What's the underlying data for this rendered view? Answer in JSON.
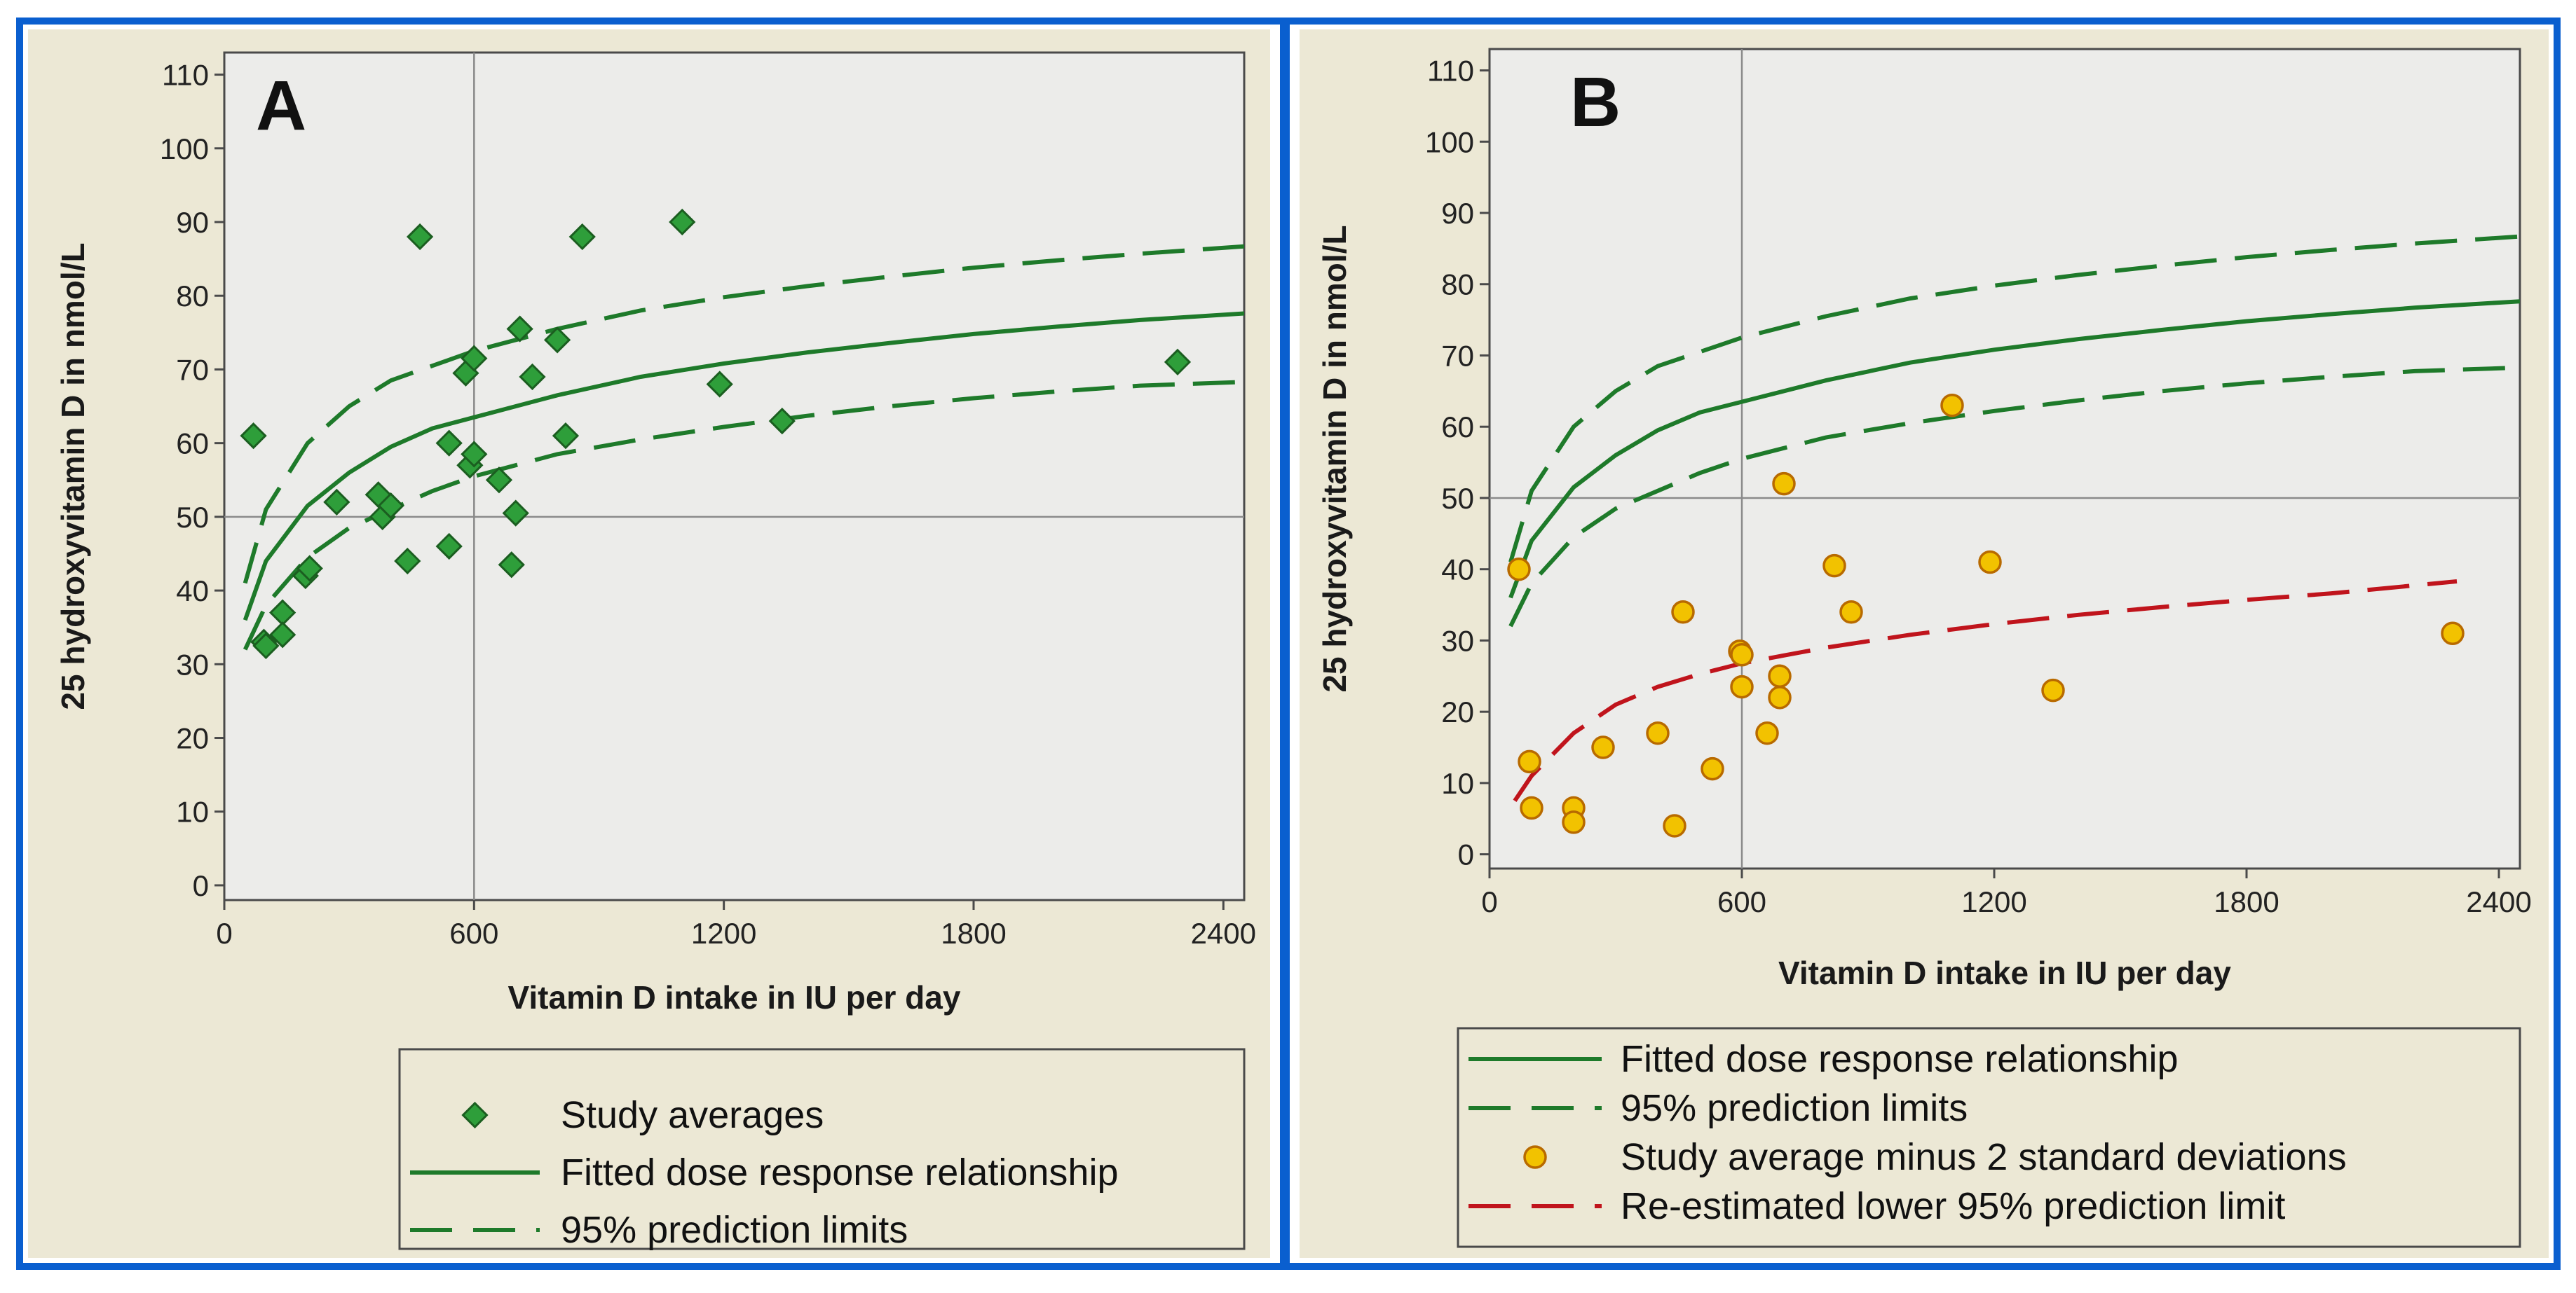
{
  "chart_data": [
    {
      "type": "scatter",
      "panel_label": "A",
      "xlabel": "Vitamin D intake in IU per day",
      "ylabel": "25 hydroxyvitamin D in nmol/L",
      "xlim": [
        0,
        2450
      ],
      "ylim": [
        -2,
        113
      ],
      "x_ticks": [
        0,
        600,
        1200,
        1800,
        2400
      ],
      "y_ticks": [
        0,
        10,
        20,
        30,
        40,
        50,
        60,
        70,
        80,
        90,
        100,
        110
      ],
      "reference_lines": {
        "x": 600,
        "y": 50
      },
      "series": [
        {
          "name": "Study averages",
          "kind": "points",
          "marker": "diamond",
          "color": "#2e9e3a",
          "points": [
            [
              70,
              61
            ],
            [
              95,
              33
            ],
            [
              100,
              32.5
            ],
            [
              140,
              37
            ],
            [
              140,
              34
            ],
            [
              195,
              42
            ],
            [
              205,
              43
            ],
            [
              270,
              52
            ],
            [
              370,
              53
            ],
            [
              380,
              50
            ],
            [
              400,
              51.5
            ],
            [
              440,
              44
            ],
            [
              470,
              88
            ],
            [
              540,
              60
            ],
            [
              540,
              46
            ],
            [
              580,
              69.5
            ],
            [
              590,
              57
            ],
            [
              600,
              71.5
            ],
            [
              600,
              58.5
            ],
            [
              660,
              55
            ],
            [
              690,
              43.5
            ],
            [
              700,
              50.5
            ],
            [
              710,
              75.5
            ],
            [
              740,
              69
            ],
            [
              800,
              74
            ],
            [
              820,
              61
            ],
            [
              860,
              88
            ],
            [
              1100,
              90
            ],
            [
              1190,
              68
            ],
            [
              1340,
              63
            ],
            [
              2290,
              71
            ]
          ]
        },
        {
          "name": "Fitted dose response relationship",
          "kind": "line",
          "style": "solid",
          "color": "#1e7a2a",
          "curve": "fitted"
        },
        {
          "name": "95% prediction limits",
          "kind": "line",
          "style": "dashed",
          "color": "#1e7a2a",
          "curve": "prediction"
        }
      ],
      "legend": {
        "position": "bottom",
        "entries": [
          "Study averages",
          "Fitted dose response relationship",
          "95% prediction limits"
        ]
      }
    },
    {
      "type": "scatter",
      "panel_label": "B",
      "xlabel": "Vitamin D intake in IU per day",
      "ylabel": "25 hydroxyvitamin D in nmol/L",
      "xlim": [
        0,
        2450
      ],
      "ylim": [
        -2,
        113
      ],
      "x_ticks": [
        0,
        600,
        1200,
        1800,
        2400
      ],
      "y_ticks": [
        0,
        10,
        20,
        30,
        40,
        50,
        60,
        70,
        80,
        90,
        100,
        110
      ],
      "reference_lines": {
        "x": 600,
        "y": 50
      },
      "series": [
        {
          "name": "Fitted dose response relationship",
          "kind": "line",
          "style": "solid",
          "color": "#1e7a2a",
          "curve": "fitted"
        },
        {
          "name": "95% prediction limits",
          "kind": "line",
          "style": "dashed",
          "color": "#1e7a2a",
          "curve": "prediction"
        },
        {
          "name": "Study average minus 2 standard deviations",
          "kind": "points",
          "marker": "circle",
          "color": "#f2c200",
          "points": [
            [
              70,
              40
            ],
            [
              95,
              13
            ],
            [
              100,
              6.5
            ],
            [
              200,
              6.5
            ],
            [
              200,
              4.5
            ],
            [
              270,
              15
            ],
            [
              400,
              17
            ],
            [
              440,
              4
            ],
            [
              460,
              34
            ],
            [
              530,
              12
            ],
            [
              595,
              28.5
            ],
            [
              600,
              28
            ],
            [
              600,
              23.5
            ],
            [
              660,
              17
            ],
            [
              690,
              25
            ],
            [
              690,
              22
            ],
            [
              700,
              52
            ],
            [
              820,
              40.5
            ],
            [
              860,
              34
            ],
            [
              1100,
              63
            ],
            [
              1190,
              41
            ],
            [
              1340,
              23
            ],
            [
              2290,
              31
            ]
          ]
        },
        {
          "name": "Re-estimated lower 95% prediction limit",
          "kind": "line",
          "style": "dashed",
          "color": "#c0141c",
          "curve": "reestimated"
        }
      ],
      "legend": {
        "position": "bottom",
        "entries": [
          "Fitted dose response relationship",
          "95% prediction limits",
          "Study average minus 2 standard deviations",
          "Re-estimated lower 95% prediction limit"
        ]
      }
    }
  ],
  "curves": {
    "fitted": {
      "x": [
        50,
        100,
        200,
        300,
        400,
        500,
        600,
        800,
        1000,
        1200,
        1400,
        1600,
        1800,
        2000,
        2200,
        2450
      ],
      "y": [
        36,
        44,
        51.5,
        56,
        59.5,
        62,
        63.5,
        66.5,
        69,
        70.8,
        72.3,
        73.6,
        74.8,
        75.8,
        76.7,
        77.6
      ]
    },
    "upper": {
      "x": [
        50,
        100,
        200,
        300,
        400,
        500,
        600,
        800,
        1000,
        1200,
        1400,
        1600,
        1800,
        2000,
        2200,
        2450
      ],
      "y": [
        41,
        51,
        60,
        65,
        68.5,
        70.5,
        72.5,
        75.5,
        78,
        79.8,
        81.3,
        82.6,
        83.8,
        84.8,
        85.7,
        86.7
      ]
    },
    "lower": {
      "x": [
        50,
        100,
        200,
        300,
        400,
        500,
        600,
        800,
        1000,
        1200,
        1400,
        1600,
        1800,
        2000,
        2200,
        2450
      ],
      "y": [
        32,
        38,
        44.5,
        48.5,
        51,
        53.5,
        55.5,
        58.5,
        60.5,
        62.2,
        63.7,
        65,
        66.1,
        67,
        67.8,
        68.3
      ]
    },
    "reestimated": {
      "x": [
        60,
        100,
        200,
        300,
        400,
        500,
        600,
        800,
        1000,
        1200,
        1400,
        1600,
        1800,
        2000,
        2300
      ],
      "y": [
        7.5,
        11,
        17,
        21,
        23.5,
        25.3,
        26.8,
        29,
        30.8,
        32.3,
        33.6,
        34.7,
        35.7,
        36.6,
        38.3
      ]
    }
  },
  "colors": {
    "frame_blue": "#0a5fcf",
    "panel_bg": "#ece8d5",
    "plot_bg": "#ececea",
    "axis": "#4a4a4a",
    "green_line": "#1e7a2a",
    "green_marker": "#2e9e3a",
    "red_line": "#c0141c",
    "yellow_marker": "#f2c200",
    "yellow_marker_edge": "#b86a00"
  }
}
